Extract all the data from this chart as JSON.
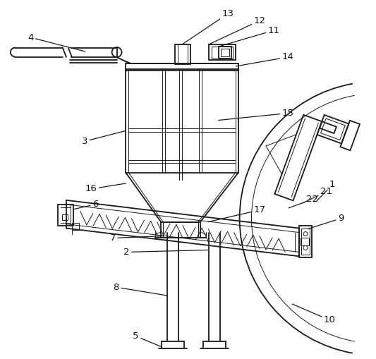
{
  "bg_color": "#ffffff",
  "line_color": "#1a1a1a",
  "lw": 1.3,
  "tlw": 0.7,
  "fs": 9.5,
  "fig_w": 5.33,
  "fig_h": 5.09,
  "dpi": 100
}
